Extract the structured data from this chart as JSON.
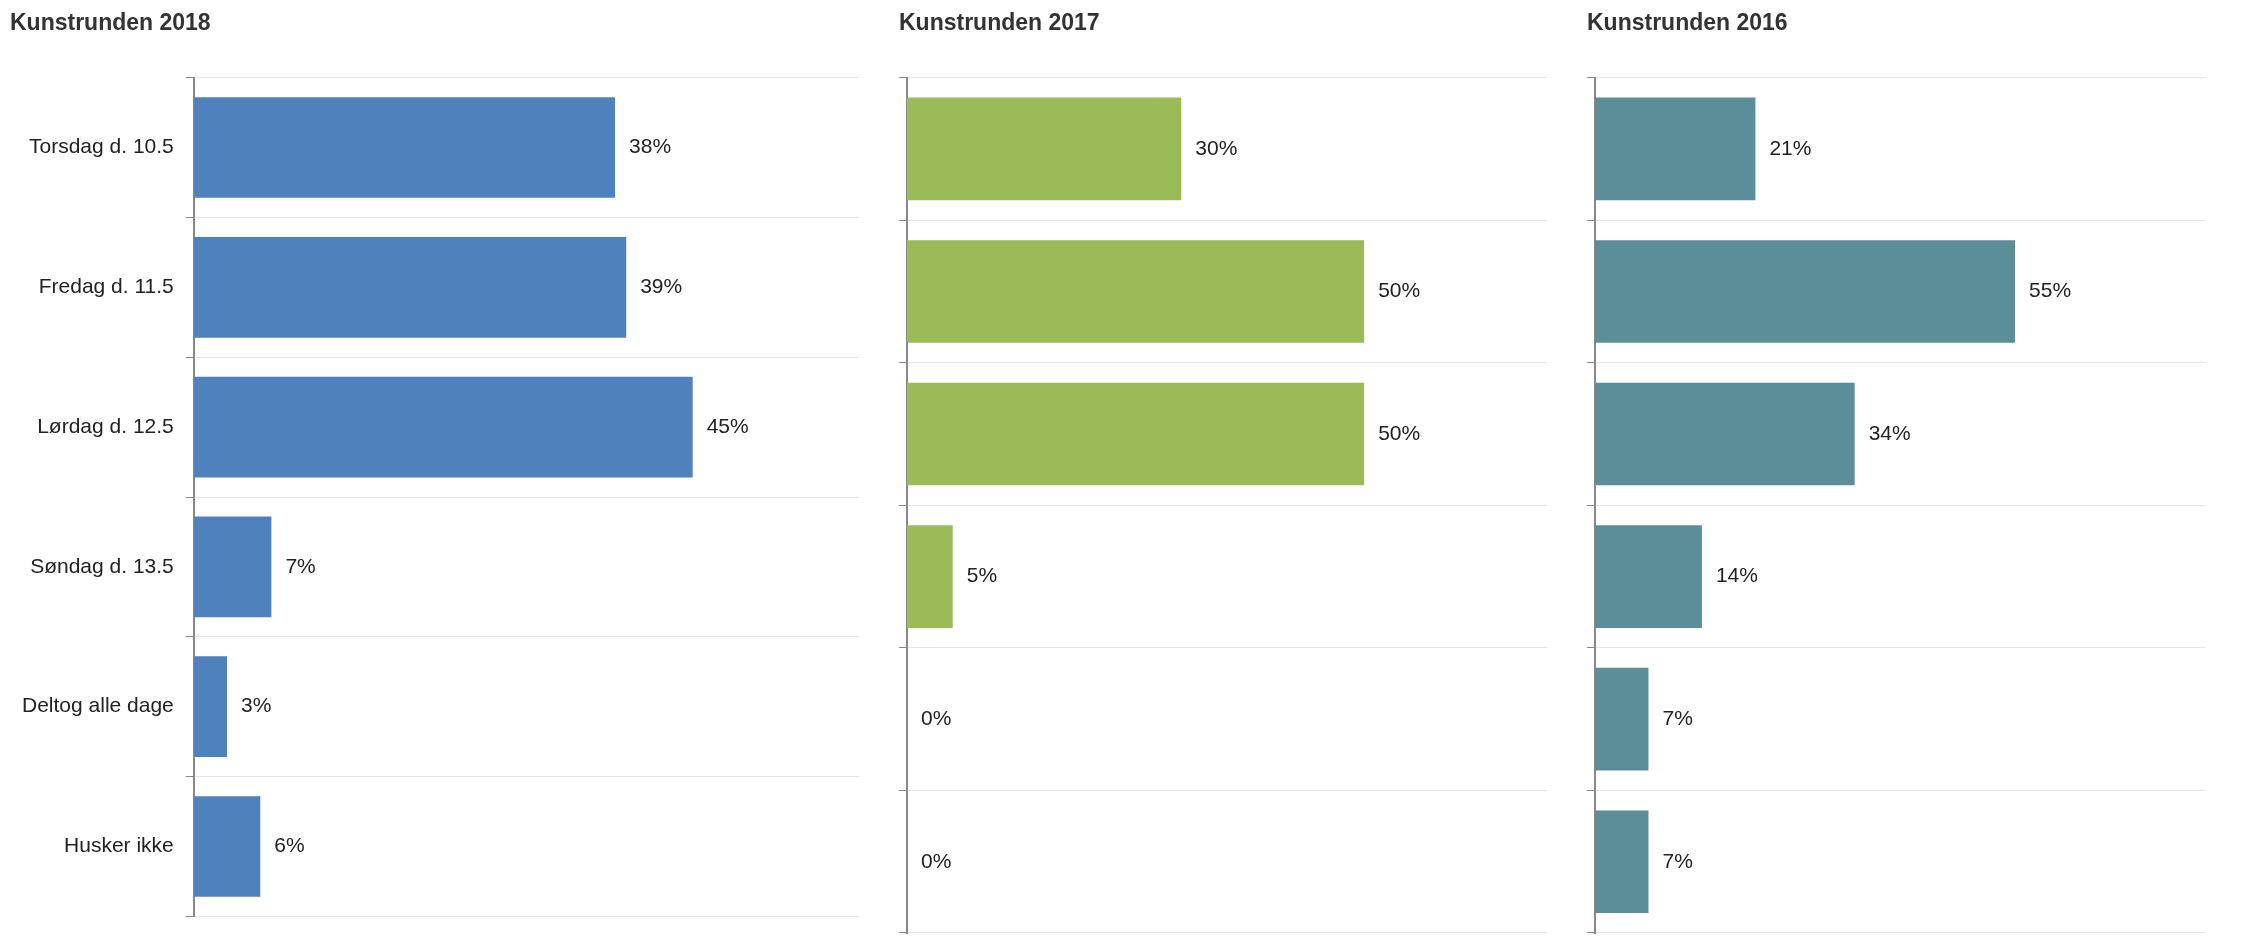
{
  "chart_data": [
    {
      "type": "bar",
      "orientation": "horizontal",
      "title": "Kunstrunden 2018",
      "categories": [
        "Torsdag d. 10.5",
        "Fredag d. 11.5",
        "Lørdag d. 12.5",
        "Søndag d. 13.5",
        "Deltog alle dage",
        "Husker ikke"
      ],
      "values": [
        38,
        39,
        45,
        7,
        3,
        6
      ],
      "value_labels": [
        "38%",
        "39%",
        "45%",
        "7%",
        "3%",
        "6%"
      ],
      "color": "#4f81bd",
      "grid": "y",
      "legend": false,
      "tick_labels": "y"
    },
    {
      "type": "bar",
      "orientation": "horizontal",
      "title": "Kunstrunden 2017",
      "categories": [
        null,
        null,
        null,
        null,
        null,
        null
      ],
      "values": [
        30,
        50,
        50,
        5,
        0,
        0
      ],
      "value_labels": [
        "30%",
        "50%",
        "50%",
        "5%",
        "0%",
        "0%"
      ],
      "color": "#9bbb59",
      "grid": "y",
      "legend": false,
      "tick_labels": false
    },
    {
      "type": "bar",
      "orientation": "horizontal",
      "title": "Kunstrunden 2016",
      "categories": [
        null,
        null,
        null,
        null,
        null,
        null
      ],
      "values": [
        21,
        55,
        34,
        14,
        7,
        7
      ],
      "value_labels": [
        "21%",
        "55%",
        "34%",
        "14%",
        "7%",
        "7%"
      ],
      "color": "#5b8e99",
      "grid": "y",
      "legend": false,
      "tick_labels": false
    }
  ]
}
